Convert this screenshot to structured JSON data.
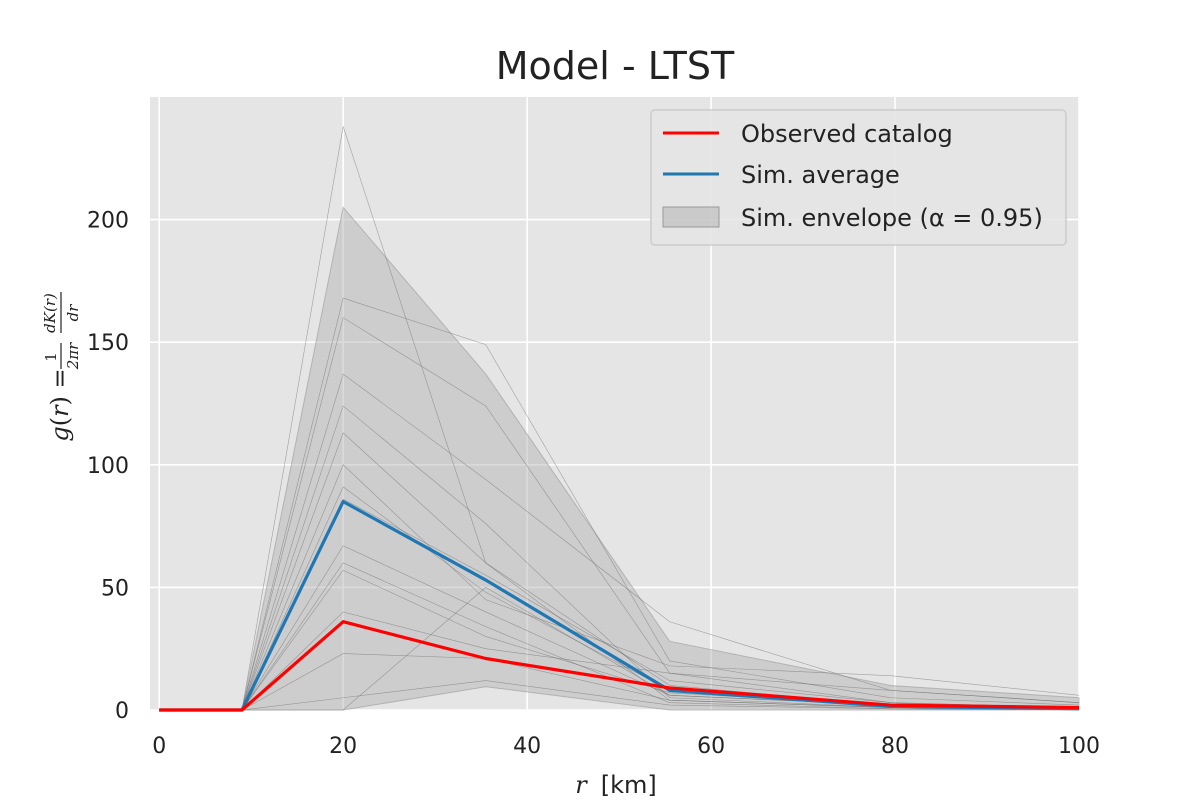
{
  "chart_data": {
    "type": "line",
    "title": "Model - LTST",
    "xlabel_var": "r",
    "xlabel_unit": "[km]",
    "ylabel": "g(r) = 1/2πr · dK(r)/dr",
    "xlim": [
      -1,
      100
    ],
    "ylim": [
      0,
      250
    ],
    "x_ticks": [
      0,
      20,
      40,
      60,
      80,
      100
    ],
    "y_ticks": [
      0,
      50,
      100,
      150,
      200
    ],
    "grid": true,
    "legend_position": "top-right",
    "x": [
      0,
      9,
      20,
      35.5,
      55.5,
      79.5,
      100
    ],
    "series": [
      {
        "name": "Observed catalog",
        "color": "#ff0000",
        "values": [
          0,
          0,
          36,
          21,
          9,
          2,
          1
        ]
      },
      {
        "name": "Sim. average",
        "color": "#1f77b4",
        "values": [
          0,
          0,
          85,
          53,
          8,
          1.5,
          0.5
        ]
      }
    ],
    "envelope": {
      "name": "Sim. envelope (α = 0.95)",
      "color": "#b0b0b0",
      "lower": [
        0,
        0,
        0,
        9.5,
        0,
        0,
        0
      ],
      "upper": [
        0,
        0,
        205,
        137,
        28,
        10,
        5
      ]
    },
    "sim_curves": [
      [
        0,
        0,
        238,
        60,
        10,
        2,
        0.5
      ],
      [
        0,
        0,
        168,
        149,
        20,
        5,
        2
      ],
      [
        0,
        0,
        160,
        124,
        15,
        3,
        1
      ],
      [
        0,
        0,
        137,
        94,
        36,
        8,
        3
      ],
      [
        0,
        0,
        124,
        76,
        5,
        1,
        0.5
      ],
      [
        0,
        0,
        113,
        60,
        4,
        1,
        0.3
      ],
      [
        0,
        0,
        100,
        45,
        18,
        14,
        6
      ],
      [
        0,
        0,
        91,
        48,
        8,
        2,
        1
      ],
      [
        0,
        0,
        86,
        55,
        12,
        3,
        1
      ],
      [
        0,
        0,
        67,
        40,
        6,
        2,
        1
      ],
      [
        0,
        0,
        60,
        34,
        3,
        0.5,
        0.2
      ],
      [
        0,
        0,
        57,
        30,
        7,
        2,
        1
      ],
      [
        0,
        0,
        40,
        25,
        15,
        8,
        3
      ],
      [
        0,
        0,
        23,
        21,
        4,
        1,
        0.5
      ],
      [
        0,
        0,
        5,
        12,
        2,
        0.5,
        0.2
      ],
      [
        0,
        0,
        0,
        50,
        6,
        2,
        1
      ]
    ]
  }
}
